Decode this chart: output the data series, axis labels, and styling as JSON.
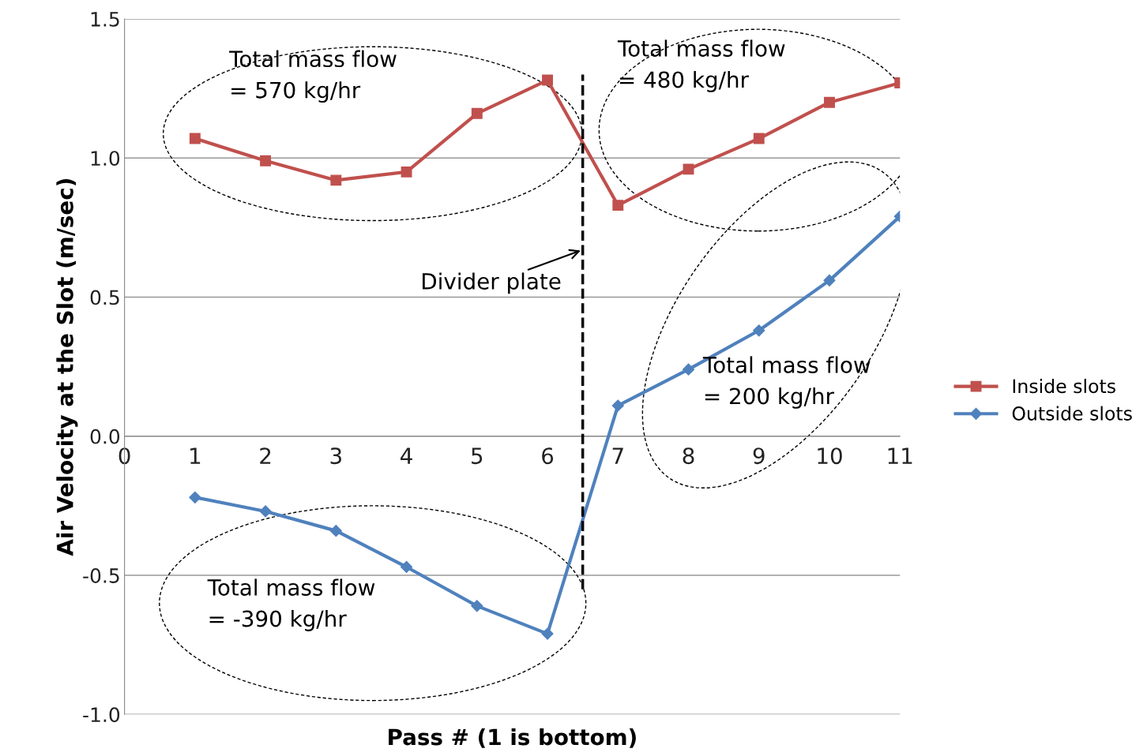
{
  "chart_data": {
    "type": "line",
    "xlabel": "Pass # (1 is bottom)",
    "ylabel": "Air Velocity at the Slot (m/sec)",
    "x": [
      1,
      2,
      3,
      4,
      5,
      6,
      7,
      8,
      9,
      10,
      11
    ],
    "xlim": [
      0,
      11
    ],
    "xticks": [
      0,
      1,
      2,
      3,
      4,
      5,
      6,
      7,
      8,
      9,
      10,
      11
    ],
    "ylim": [
      -1.0,
      1.5
    ],
    "yticks": [
      {
        "value": -1.0,
        "label": "-1.0"
      },
      {
        "value": -0.5,
        "label": "-0.5"
      },
      {
        "value": 0.0,
        "label": "0.0"
      },
      {
        "value": 0.5,
        "label": "0.5"
      },
      {
        "value": 1.0,
        "label": "1.0"
      },
      {
        "value": 1.5,
        "label": "1.5"
      }
    ],
    "grid": "y",
    "legend": "right",
    "series": [
      {
        "name": "Inside slots",
        "color": "#c0504d",
        "marker": "square",
        "values": [
          1.07,
          0.99,
          0.92,
          0.95,
          1.16,
          1.28,
          0.83,
          0.96,
          1.07,
          1.2,
          1.27
        ]
      },
      {
        "name": "Outside slots",
        "color": "#4f81bd",
        "marker": "diamond",
        "values": [
          -0.22,
          -0.27,
          -0.34,
          -0.47,
          -0.61,
          -0.71,
          0.11,
          0.24,
          0.38,
          0.56,
          0.79
        ]
      }
    ],
    "ref_lines": [
      {
        "axis": "x",
        "value": 6.5,
        "label": "Divider plate",
        "color": "#000000",
        "line_style": "dashed"
      }
    ],
    "annotations": [
      "Total mass flow\n= 570 kg/hr",
      "Total mass flow\n= 480 kg/hr",
      "Total mass flow\n= 200 kg/hr",
      "Total mass flow\n= -390 kg/hr"
    ]
  }
}
